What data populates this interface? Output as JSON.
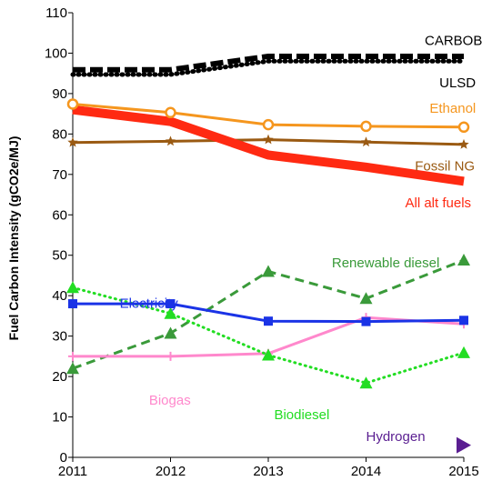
{
  "chart_data": {
    "type": "line",
    "title": "",
    "xlabel": "",
    "ylabel": "Fuel Carbon Intensity (gCO2e/MJ)",
    "x": [
      2011,
      2012,
      2013,
      2014,
      2015
    ],
    "x_ticks": [
      "2011",
      "2012",
      "2013",
      "2014",
      "2015"
    ],
    "ylim": [
      0,
      110
    ],
    "y_ticks": [
      "0",
      "10",
      "20",
      "30",
      "40",
      "50",
      "60",
      "70",
      "80",
      "90",
      "100",
      "110"
    ],
    "grid": false,
    "legend": "none (series labeled directly)",
    "series": [
      {
        "name": "CARBOB",
        "x": [
          2011,
          2012,
          2013,
          2014,
          2015
        ],
        "values": [
          95.9,
          95.9,
          99.2,
          99.2,
          99.2
        ],
        "color": "#000000",
        "style": "dashed-thick",
        "marker": "none"
      },
      {
        "name": "ULSD",
        "x": [
          2011,
          2012,
          2013,
          2014,
          2015
        ],
        "values": [
          94.7,
          94.7,
          98.0,
          98.0,
          98.0
        ],
        "color": "#000000",
        "style": "dotted-thick",
        "marker": "none"
      },
      {
        "name": "Ethanol",
        "x": [
          2011,
          2012,
          2013,
          2014,
          2015
        ],
        "values": [
          87.4,
          85.3,
          82.3,
          81.9,
          81.7
        ],
        "color": "#f5961e",
        "style": "solid",
        "marker": "circle-open"
      },
      {
        "name": "Fossil NG",
        "x": [
          2011,
          2012,
          2013,
          2014,
          2015
        ],
        "values": [
          77.9,
          78.2,
          78.6,
          78.0,
          77.4
        ],
        "color": "#9a5a12",
        "style": "solid",
        "marker": "star"
      },
      {
        "name": "All alt fuels",
        "x": [
          2011,
          2012,
          2013,
          2014,
          2015
        ],
        "values": [
          86.0,
          83.1,
          74.8,
          71.8,
          68.3
        ],
        "color": "#ff2a12",
        "style": "solid-thick",
        "marker": "none"
      },
      {
        "name": "Renewable diesel",
        "x": [
          2011,
          2012,
          2013,
          2014,
          2015
        ],
        "values": [
          22.0,
          30.7,
          46.0,
          39.3,
          48.8
        ],
        "color": "#3a9a3a",
        "style": "dashed",
        "marker": "triangle"
      },
      {
        "name": "Electricity",
        "x": [
          2011,
          2012,
          2013,
          2014,
          2015
        ],
        "values": [
          38.0,
          38.0,
          33.7,
          33.6,
          33.9
        ],
        "color": "#1a33e6",
        "style": "solid",
        "marker": "square"
      },
      {
        "name": "Biodiesel",
        "x": [
          2011,
          2012,
          2013,
          2014,
          2015
        ],
        "values": [
          42.0,
          35.6,
          25.3,
          18.4,
          25.9
        ],
        "color": "#22dd22",
        "style": "dotted",
        "marker": "triangle"
      },
      {
        "name": "Biogas",
        "x": [
          2011,
          2012,
          2013,
          2014,
          2015
        ],
        "values": [
          25.0,
          25.0,
          25.7,
          34.6,
          33.0
        ],
        "color": "#ff88cc",
        "style": "solid",
        "marker": "cross"
      },
      {
        "name": "Hydrogen",
        "x": [
          2015
        ],
        "values": [
          3.0
        ],
        "color": "#5a1e91",
        "style": "none",
        "marker": "triangle-right"
      }
    ],
    "annotations": [
      {
        "text": "CARBOB",
        "series": "CARBOB",
        "color": "#000000",
        "x": 2014.6,
        "y": 102.0
      },
      {
        "text": "ULSD",
        "series": "ULSD",
        "color": "#000000",
        "x": 2014.75,
        "y": 91.5
      },
      {
        "text": "Ethanol",
        "series": "Ethanol",
        "color": "#f5961e",
        "x": 2014.65,
        "y": 85.3
      },
      {
        "text": "Fossil NG",
        "series": "Fossil NG",
        "color": "#9a5a12",
        "x": 2014.5,
        "y": 71.0
      },
      {
        "text": "All alt fuels",
        "series": "All alt fuels",
        "color": "#ff2a12",
        "x": 2014.4,
        "y": 61.9
      },
      {
        "text": "Renewable diesel",
        "series": "Renewable diesel",
        "color": "#3a9a3a",
        "x": 2013.65,
        "y": 47.0
      },
      {
        "text": "Electricity",
        "series": "Electricity",
        "color": "#1a33e6",
        "x": 2011.48,
        "y": 37.0
      },
      {
        "text": "Biodiesel",
        "series": "Biodiesel",
        "color": "#22dd22",
        "x": 2013.06,
        "y": 9.5
      },
      {
        "text": "Biogas",
        "series": "Biogas",
        "color": "#ff88cc",
        "x": 2011.78,
        "y": 13.0
      },
      {
        "text": "Hydrogen",
        "series": "Hydrogen",
        "color": "#5a1e91",
        "x": 2014.0,
        "y": 4.0
      }
    ]
  }
}
